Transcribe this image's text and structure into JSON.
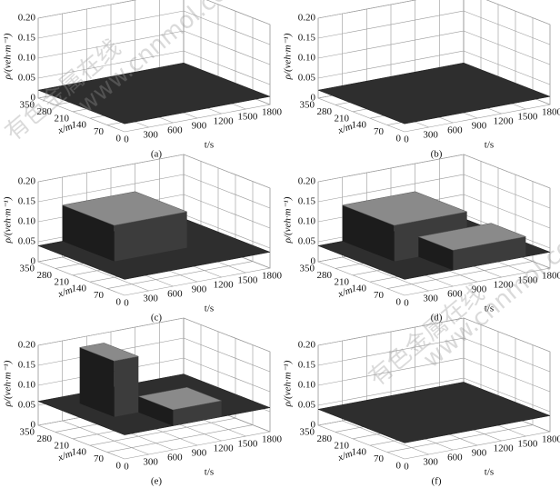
{
  "watermark": [
    "有色金属在线",
    "www.cnnmol.com"
  ],
  "chart_data": [
    {
      "type": "surface",
      "caption": "(a)",
      "zlabel": "ρ/(veh·m⁻¹)",
      "xlabel": "x/m",
      "tlabel": "t/s",
      "zlim": [
        0,
        0.2
      ],
      "zticks": [
        0,
        {
          "value": 0.05,
          "label": "0.05"
        },
        {
          "value": 0.1,
          "label": "0.10"
        },
        {
          "value": 0.15,
          "label": "0.15"
        },
        {
          "value": 0.2,
          "label": "0.20"
        }
      ],
      "xlim": [
        0,
        350
      ],
      "xticks": [
        350,
        280,
        210,
        140,
        70,
        0
      ],
      "tlim": [
        0,
        1800
      ],
      "tticks": [
        0,
        300,
        600,
        900,
        1200,
        1500,
        1800
      ],
      "base": 0.02,
      "blocks": []
    },
    {
      "type": "surface",
      "caption": "(b)",
      "zlabel": "ρ/(veh·m⁻¹)",
      "xlabel": "x/m",
      "tlabel": "t/s",
      "zlim": [
        0,
        0.2
      ],
      "zticks": [
        0,
        {
          "value": 0.05,
          "label": "0.05"
        },
        {
          "value": 0.1,
          "label": "0.10"
        },
        {
          "value": 0.15,
          "label": "0.15"
        },
        {
          "value": 0.2,
          "label": "0.20"
        }
      ],
      "xlim": [
        0,
        350
      ],
      "xticks": [
        350,
        280,
        210,
        140,
        70,
        0
      ],
      "tlim": [
        0,
        1800
      ],
      "tticks": [
        0,
        300,
        600,
        900,
        1200,
        1500,
        1800
      ],
      "base": 0.02,
      "blocks": []
    },
    {
      "type": "surface",
      "caption": "(c)",
      "zlabel": "ρ/(veh·m⁻¹)",
      "xlabel": "x/m",
      "tlabel": "t/s",
      "zlim": [
        0,
        0.2
      ],
      "zticks": [
        0,
        {
          "value": 0.05,
          "label": "0.05"
        },
        {
          "value": 0.1,
          "label": "0.10"
        },
        {
          "value": 0.15,
          "label": "0.15"
        },
        {
          "value": 0.2,
          "label": "0.20"
        }
      ],
      "xlim": [
        0,
        350
      ],
      "xticks": [
        350,
        280,
        210,
        140,
        70,
        0
      ],
      "tlim": [
        0,
        1800
      ],
      "tticks": [
        0,
        300,
        600,
        900,
        1200,
        1500,
        1800
      ],
      "base": 0.04,
      "blocks": [
        {
          "x": [
            140,
            350
          ],
          "t": [
            300,
            1200
          ],
          "z": 0.13
        }
      ]
    },
    {
      "type": "surface",
      "caption": "(d)",
      "zlabel": "ρ/(veh·m⁻¹)",
      "xlabel": "x/m",
      "tlabel": "t/s",
      "zlim": [
        0,
        0.2
      ],
      "zticks": [
        0,
        {
          "value": 0.05,
          "label": "0.05"
        },
        {
          "value": 0.1,
          "label": "0.10"
        },
        {
          "value": 0.15,
          "label": "0.15"
        },
        {
          "value": 0.2,
          "label": "0.20"
        }
      ],
      "xlim": [
        0,
        350
      ],
      "xticks": [
        350,
        280,
        210,
        140,
        70,
        0
      ],
      "tlim": [
        0,
        1800
      ],
      "tticks": [
        0,
        300,
        600,
        900,
        1200,
        1500,
        1800
      ],
      "base": 0.04,
      "blocks": [
        {
          "x": [
            140,
            350
          ],
          "t": [
            300,
            1200
          ],
          "z": 0.13
        },
        {
          "x": [
            0,
            140
          ],
          "t": [
            600,
            1500
          ],
          "z": 0.09
        }
      ]
    },
    {
      "type": "surface",
      "caption": "(e)",
      "zlabel": "ρ/(veh·m⁻¹)",
      "xlabel": "x/m",
      "tlabel": "t/s",
      "zlim": [
        0,
        0.2
      ],
      "zticks": [
        0,
        {
          "value": 0.05,
          "label": "0.05"
        },
        {
          "value": 0.1,
          "label": "0.10"
        },
        {
          "value": 0.15,
          "label": "0.15"
        },
        {
          "value": 0.2,
          "label": "0.20"
        }
      ],
      "xlim": [
        0,
        350
      ],
      "xticks": [
        350,
        280,
        210,
        140,
        70,
        0
      ],
      "tlim": [
        0,
        1800
      ],
      "tticks": [
        0,
        300,
        600,
        900,
        1200,
        1500,
        1800
      ],
      "base": 0.06,
      "blocks": [
        {
          "x": [
            140,
            280
          ],
          "t": [
            300,
            600
          ],
          "z": 0.2
        },
        {
          "x": [
            0,
            140
          ],
          "t": [
            600,
            1200
          ],
          "z": 0.1
        }
      ]
    },
    {
      "type": "surface",
      "caption": "(f)",
      "zlabel": "ρ/(veh·m⁻¹)",
      "xlabel": "x/m",
      "tlabel": "t/s",
      "zlim": [
        0,
        0.2
      ],
      "zticks": [
        0,
        {
          "value": 0.05,
          "label": "0.05"
        },
        {
          "value": 0.1,
          "label": "0.10"
        },
        {
          "value": 0.15,
          "label": "0.15"
        },
        {
          "value": 0.2,
          "label": "0.20"
        }
      ],
      "xlim": [
        0,
        350
      ],
      "xticks": [
        350,
        280,
        210,
        140,
        70,
        0
      ],
      "tlim": [
        0,
        1800
      ],
      "tticks": [
        0,
        300,
        600,
        900,
        1200,
        1500,
        1800
      ],
      "base": 0.04,
      "blocks": []
    }
  ]
}
